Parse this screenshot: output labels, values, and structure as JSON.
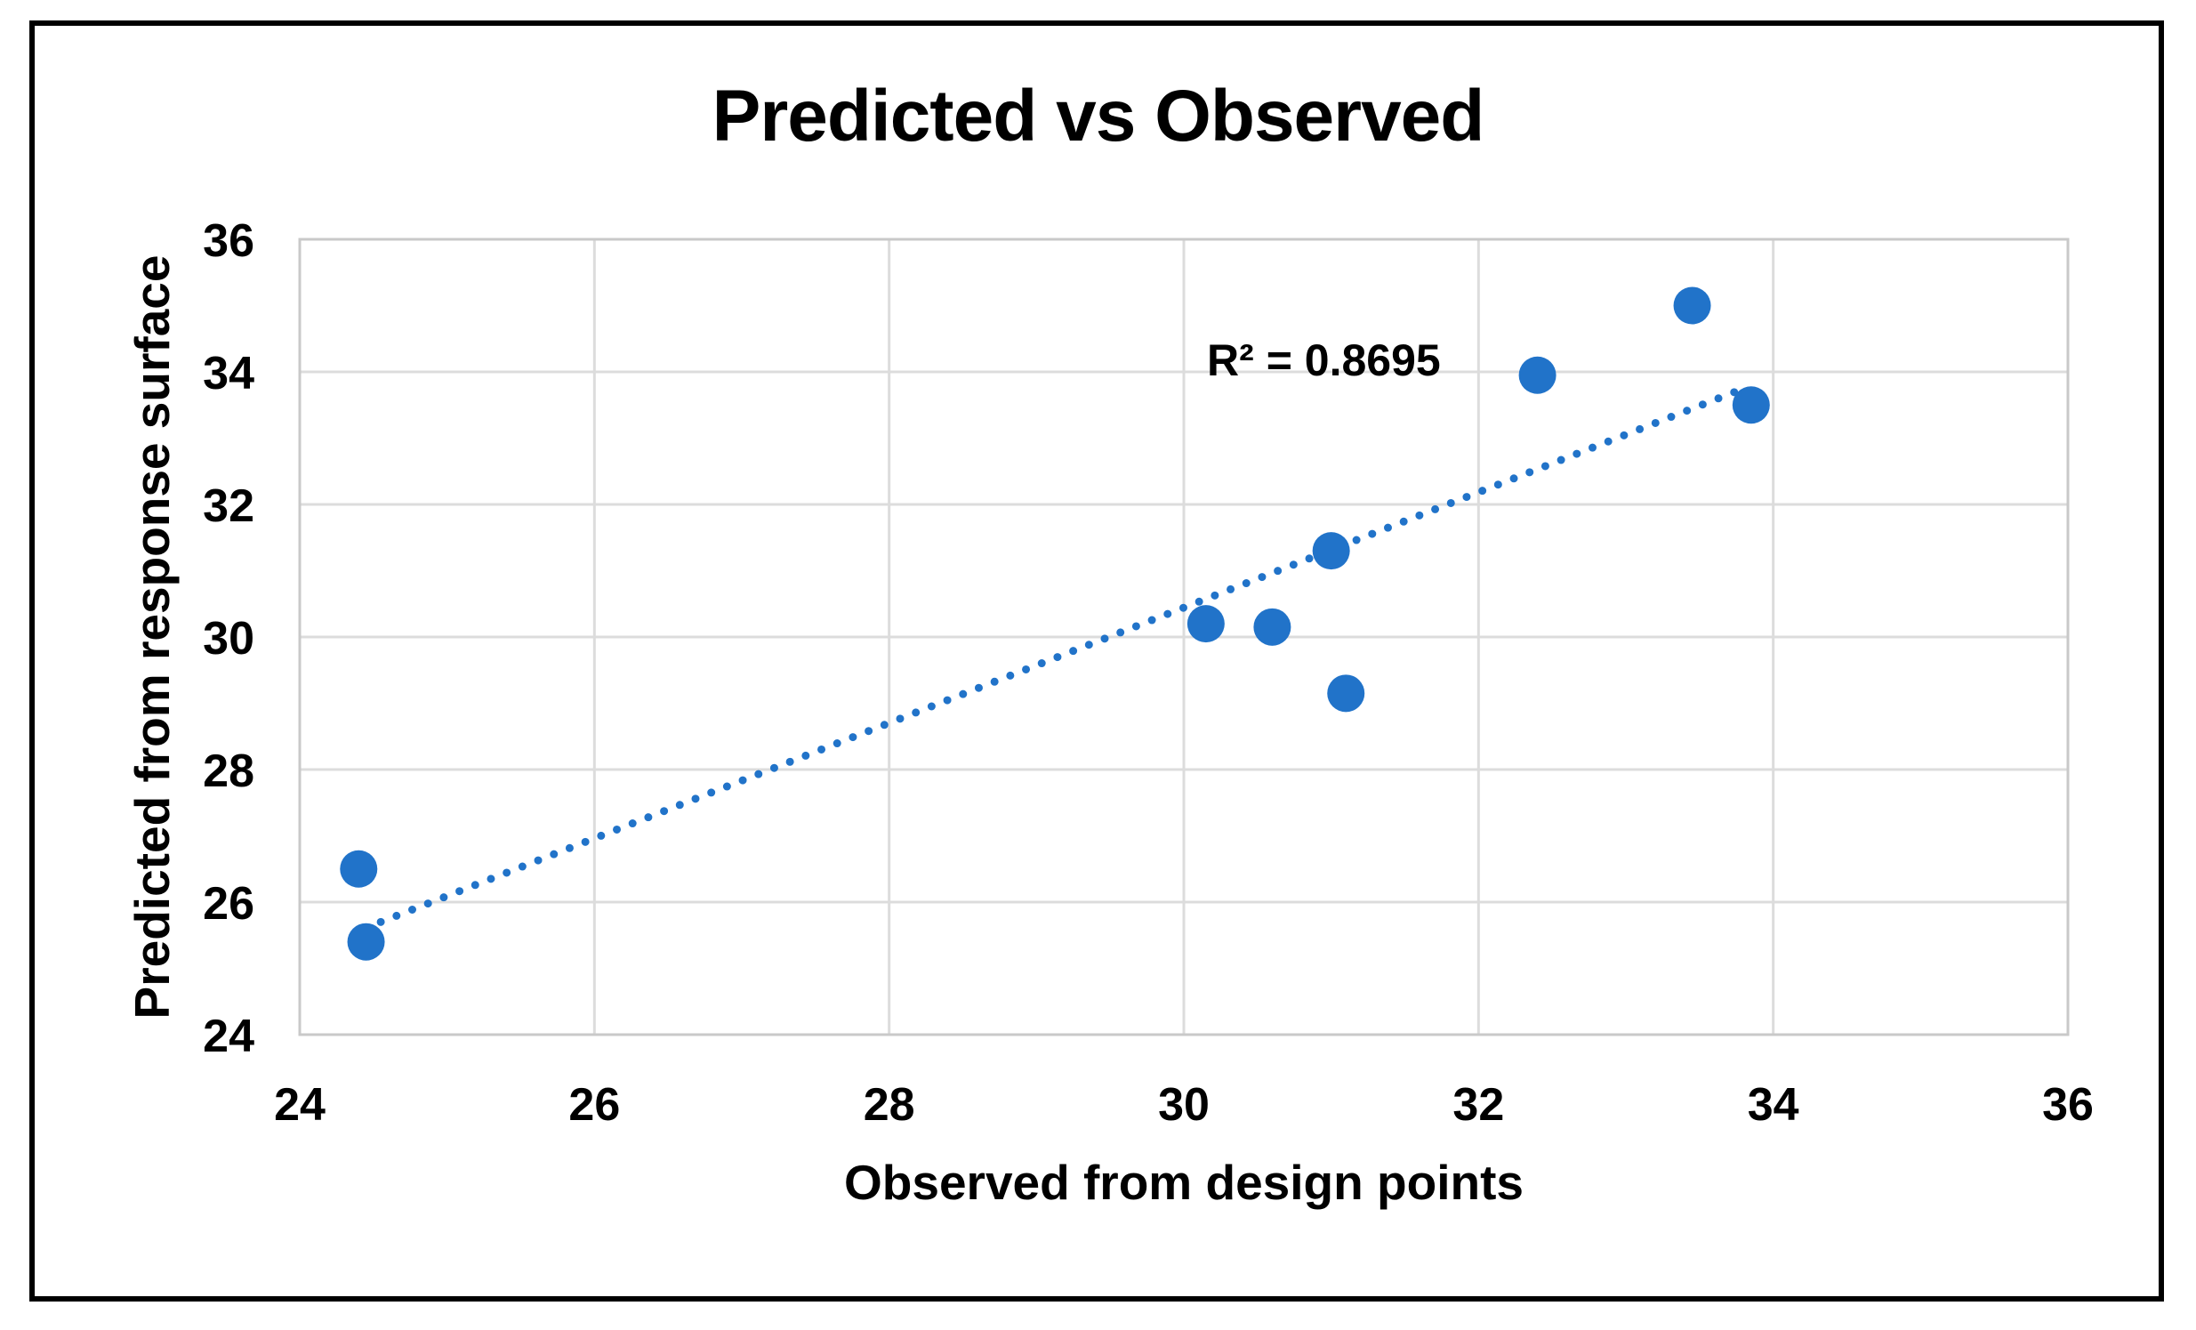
{
  "chart_data": {
    "type": "scatter",
    "title": "Predicted vs Observed",
    "xlabel": "Observed from design points",
    "ylabel": "Predicted from response surface",
    "xlim": [
      24,
      36
    ],
    "ylim": [
      24,
      36
    ],
    "x_ticks": [
      24,
      26,
      28,
      30,
      32,
      34,
      36
    ],
    "y_ticks": [
      24,
      26,
      28,
      30,
      32,
      34,
      36
    ],
    "grid": true,
    "legend": "none",
    "points": [
      {
        "x": 24.4,
        "y": 26.5
      },
      {
        "x": 24.45,
        "y": 25.4
      },
      {
        "x": 30.15,
        "y": 30.2
      },
      {
        "x": 30.6,
        "y": 30.15
      },
      {
        "x": 31.0,
        "y": 31.3
      },
      {
        "x": 31.1,
        "y": 29.15
      },
      {
        "x": 32.4,
        "y": 33.95
      },
      {
        "x": 33.45,
        "y": 35.0
      },
      {
        "x": 33.85,
        "y": 33.5
      }
    ],
    "trendline": {
      "style": "dotted",
      "x1": 24.55,
      "y1": 25.7,
      "x2": 33.8,
      "y2": 33.75
    },
    "annotation": {
      "text": "R² = 0.8695",
      "x": 30.95,
      "y": 34.18
    },
    "colors": {
      "marker": "#2173C9",
      "trendline": "#2173C9",
      "gridline": "#DCDCDC",
      "plot_border": "#C9C9C9",
      "text": "#000000",
      "frame": "#000000",
      "background": "#FFFFFF"
    }
  }
}
